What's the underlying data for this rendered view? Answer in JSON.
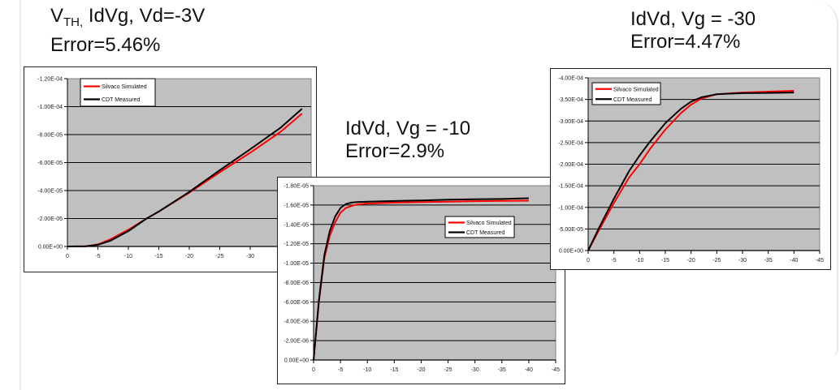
{
  "captions": {
    "idvg": {
      "line1_main": "V",
      "line1_sub": "TH,",
      "line1_rest": " IdVg, Vd=-3V",
      "line2": "Error=5.46%"
    },
    "idvd10": {
      "line1": "IdVd, Vg = -10",
      "line2": "Error=2.9%"
    },
    "idvd30": {
      "line1": "IdVd, Vg = -30",
      "line2": "Error=4.47%"
    }
  },
  "colors": {
    "plot_bg": "#c0c0c0",
    "grid": "#000000",
    "simulated": "#ff0000",
    "measured": "#000000",
    "frame": "#222222"
  },
  "legend": {
    "simulated": "Silvaco Simulated",
    "measured": "CDT Measured"
  },
  "chart_data": [
    {
      "type": "line",
      "title": "VTH, IdVg, Vd=-3V  Error=5.46%",
      "xlabel": "",
      "ylabel": "",
      "xlim": [
        0,
        -40
      ],
      "ylim": [
        0,
        -0.00012
      ],
      "grid": true,
      "legend_position": "top-left",
      "x_ticks": [
        "0",
        "-5",
        "-10",
        "-15",
        "-20",
        "-25",
        "-30",
        "-35"
      ],
      "y_ticks": [
        "0.00E+00",
        "-2.00E-05",
        "-4.00E-05",
        "-6.00E-05",
        "-8.00E-05",
        "-1.00E-04",
        "-1.20E-04"
      ],
      "x": [
        0,
        -3,
        -5,
        -7,
        -10,
        -13,
        -15,
        -20,
        -25,
        -30,
        -35,
        -38.5
      ],
      "series": [
        {
          "name": "Silvaco Simulated",
          "values": [
            0,
            -1e-07,
            -1.5e-06,
            -5e-06,
            -1.2e-05,
            -2e-05,
            -2.5e-05,
            -3.85e-05,
            -5.3e-05,
            -6.7e-05,
            -8.2e-05,
            -9.5e-05
          ]
        },
        {
          "name": "CDT Measured",
          "values": [
            0,
            -1e-07,
            -1.2e-06,
            -4e-06,
            -1.1e-05,
            -2e-05,
            -2.5e-05,
            -3.9e-05,
            -5.45e-05,
            -6.95e-05,
            -8.5e-05,
            -9.85e-05
          ]
        }
      ]
    },
    {
      "type": "line",
      "title": "IdVd, Vg = -10  Error=2.9%",
      "xlabel": "",
      "ylabel": "",
      "xlim": [
        0,
        -45
      ],
      "ylim": [
        0,
        -1.8e-05
      ],
      "grid": true,
      "legend_position": "right-center-upper",
      "x_ticks": [
        "0",
        "-5",
        "-10",
        "-15",
        "-20",
        "-25",
        "-30",
        "-35",
        "-40",
        "-45"
      ],
      "y_ticks": [
        "0.00E+00",
        "-2.00E-06",
        "-4.00E-06",
        "-6.00E-06",
        "-8.00E-06",
        "-1.00E-05",
        "-1.20E-05",
        "-1.40E-05",
        "-1.60E-05",
        "-1.80E-05"
      ],
      "x": [
        0,
        -1,
        -2,
        -3,
        -4,
        -5,
        -6,
        -7,
        -8,
        -10,
        -15,
        -20,
        -25,
        -30,
        -35,
        -40
      ],
      "series": [
        {
          "name": "Silvaco Simulated",
          "values": [
            0,
            -6e-06,
            -1.05e-05,
            -1.28e-05,
            -1.42e-05,
            -1.52e-05,
            -1.57e-05,
            -1.59e-05,
            -1.605e-05,
            -1.615e-05,
            -1.625e-05,
            -1.63e-05,
            -1.635e-05,
            -1.64e-05,
            -1.643e-05,
            -1.645e-05
          ]
        },
        {
          "name": "CDT Measured",
          "values": [
            0,
            -6.2e-06,
            -1.08e-05,
            -1.33e-05,
            -1.48e-05,
            -1.57e-05,
            -1.61e-05,
            -1.625e-05,
            -1.63e-05,
            -1.635e-05,
            -1.642e-05,
            -1.648e-05,
            -1.655e-05,
            -1.66e-05,
            -1.663e-05,
            -1.67e-05
          ]
        }
      ]
    },
    {
      "type": "line",
      "title": "IdVd, Vg = -30  Error=4.47%",
      "xlabel": "",
      "ylabel": "",
      "xlim": [
        0,
        -45
      ],
      "ylim": [
        0,
        -0.0004
      ],
      "grid": true,
      "legend_position": "top-left",
      "x_ticks": [
        "0",
        "-5",
        "-10",
        "-15",
        "-20",
        "-25",
        "-30",
        "-35",
        "-40",
        "-45"
      ],
      "y_ticks": [
        "0.00E+00",
        "-5.00E-05",
        "-1.00E-04",
        "-1.50E-04",
        "-2.00E-04",
        "-2.50E-04",
        "-3.00E-04",
        "-3.50E-04",
        "-4.00E-04"
      ],
      "x": [
        0,
        -2,
        -5,
        -8,
        -10,
        -12,
        -15,
        -18,
        -20,
        -22,
        -25,
        -30,
        -35,
        -40
      ],
      "series": [
        {
          "name": "Silvaco Simulated",
          "values": [
            0,
            -4.5e-05,
            -0.00011,
            -0.00017,
            -0.0002,
            -0.000235,
            -0.00028,
            -0.000318,
            -0.000338,
            -0.000352,
            -0.000362,
            -0.000366,
            -0.000368,
            -0.00037
          ]
        },
        {
          "name": "CDT Measured",
          "values": [
            0,
            -5e-05,
            -0.00012,
            -0.000185,
            -0.00022,
            -0.000252,
            -0.000295,
            -0.000328,
            -0.000345,
            -0.000355,
            -0.000362,
            -0.0003645,
            -0.000365,
            -0.000366
          ]
        }
      ]
    }
  ]
}
